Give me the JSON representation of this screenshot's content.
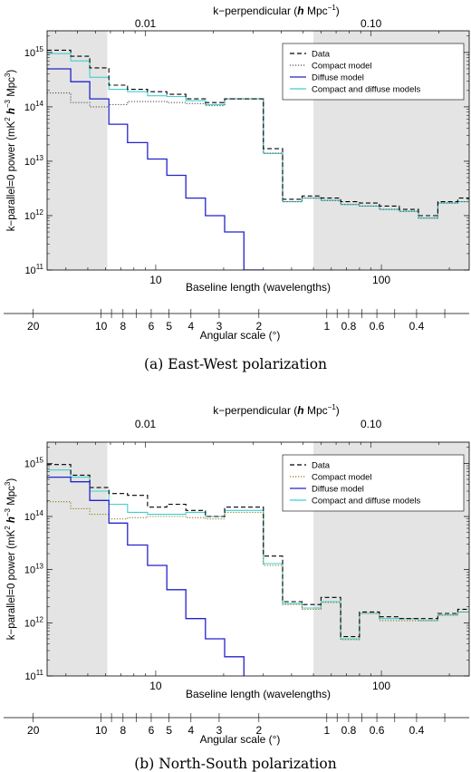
{
  "chart_data": [
    {
      "type": "line",
      "panel_caption": "(a) East-West polarization",
      "xlabel": "Baseline length (wavelengths)",
      "ylabel_parts": [
        "k−parallel=0 power (mK",
        "2",
        " ",
        "h",
        "−3",
        " Mpc",
        "3",
        ")"
      ],
      "top_axis_label_parts": [
        "k−perpendicular (",
        "h",
        " Mpc",
        "−1",
        ")"
      ],
      "angle_axis_label": "Angular scale (°)",
      "xscale": "log",
      "yscale": "log",
      "xlim": [
        3.3,
        245
      ],
      "ylim": [
        100000000000.0,
        2500000000000000.0
      ],
      "shaded_x_ranges": [
        [
          3.3,
          6.1
        ],
        [
          50,
          245
        ]
      ],
      "x_ticks": [
        {
          "value": 10,
          "label": "10"
        },
        {
          "value": 100,
          "label": "100"
        }
      ],
      "y_ticks": [
        {
          "value": 100000000000.0,
          "base": "10",
          "exp": "11"
        },
        {
          "value": 1000000000000.0,
          "base": "10",
          "exp": "12"
        },
        {
          "value": 10000000000000.0,
          "base": "10",
          "exp": "13"
        },
        {
          "value": 100000000000000.0,
          "base": "10",
          "exp": "14"
        },
        {
          "value": 1000000000000000.0,
          "base": "10",
          "exp": "15"
        }
      ],
      "k_ticks": [
        {
          "value": 0.01,
          "label": "0.01"
        },
        {
          "value": 0.1,
          "label": "0.10"
        }
      ],
      "angle_ticks": [
        "20",
        "10",
        "8",
        "6",
        "5",
        "4",
        "3",
        "2",
        "1",
        "0.8",
        "0.6",
        "0.4"
      ],
      "legend_position": "top-right",
      "bin_edges": [
        3.3,
        4.2,
        5.1,
        6.2,
        7.5,
        9.2,
        11.2,
        13.6,
        16.6,
        20.2,
        24.6,
        30,
        36.5,
        44.5,
        54,
        66,
        80,
        98,
        120,
        146,
        178,
        218,
        245
      ],
      "series": [
        {
          "name": "Data",
          "color": "#000000",
          "style": "dashed",
          "values": [
            1100000000000000.0,
            850000000000000.0,
            520000000000000.0,
            250000000000000.0,
            210000000000000.0,
            190000000000000.0,
            170000000000000.0,
            140000000000000.0,
            120000000000000.0,
            140000000000000.0,
            140000000000000.0,
            17000000000000.0,
            2000000000000.0,
            2300000000000.0,
            2100000000000.0,
            1800000000000.0,
            1700000000000.0,
            1500000000000.0,
            1300000000000.0,
            1000000000000.0,
            1800000000000.0,
            2100000000000.0
          ]
        },
        {
          "name": "Compact model",
          "color": "#555555",
          "style": "dotted",
          "values": [
            180000000000000.0,
            120000000000000.0,
            100000000000000.0,
            110000000000000.0,
            125000000000000.0,
            125000000000000.0,
            120000000000000.0,
            115000000000000.0,
            105000000000000.0,
            140000000000000.0,
            140000000000000.0,
            14000000000000.0,
            1800000000000.0,
            2100000000000.0,
            1900000000000.0,
            1600000000000.0,
            1500000000000.0,
            1300000000000.0,
            1200000000000.0,
            900000000000.0,
            1700000000000.0,
            1800000000000.0
          ]
        },
        {
          "name": "Diffuse model",
          "color": "#2323cc",
          "style": "solid",
          "values": [
            500000000000000.0,
            290000000000000.0,
            140000000000000.0,
            48000000000000.0,
            22000000000000.0,
            11000000000000.0,
            5500000000000.0,
            2100000000000.0,
            1000000000000.0,
            500000000000.0,
            100000000000.0
          ]
        },
        {
          "name": "Compact and diffuse models",
          "color": "#3fcfcf",
          "style": "solid",
          "values": [
            950000000000000.0,
            700000000000000.0,
            350000000000000.0,
            210000000000000.0,
            190000000000000.0,
            160000000000000.0,
            155000000000000.0,
            130000000000000.0,
            110000000000000.0,
            140000000000000.0,
            140000000000000.0,
            14000000000000.0,
            1800000000000.0,
            2100000000000.0,
            1900000000000.0,
            1600000000000.0,
            1500000000000.0,
            1300000000000.0,
            1200000000000.0,
            900000000000.0,
            1700000000000.0,
            1800000000000.0
          ]
        }
      ]
    },
    {
      "type": "line",
      "panel_caption": "(b) North-South polarization",
      "xlabel": "Baseline length (wavelengths)",
      "ylabel_parts": [
        "k−parallel=0 power (mK",
        "2",
        " ",
        "h",
        "−3",
        " Mpc",
        "3",
        ")"
      ],
      "top_axis_label_parts": [
        "k−perpendicular (",
        "h",
        " Mpc",
        "−1",
        ")"
      ],
      "angle_axis_label": "Angular scale (°)",
      "xscale": "log",
      "yscale": "log",
      "xlim": [
        3.3,
        245
      ],
      "ylim": [
        100000000000.0,
        2500000000000000.0
      ],
      "shaded_x_ranges": [
        [
          3.3,
          6.1
        ],
        [
          50,
          245
        ]
      ],
      "x_ticks": [
        {
          "value": 10,
          "label": "10"
        },
        {
          "value": 100,
          "label": "100"
        }
      ],
      "y_ticks": [
        {
          "value": 100000000000.0,
          "base": "10",
          "exp": "11"
        },
        {
          "value": 1000000000000.0,
          "base": "10",
          "exp": "12"
        },
        {
          "value": 10000000000000.0,
          "base": "10",
          "exp": "13"
        },
        {
          "value": 100000000000000.0,
          "base": "10",
          "exp": "14"
        },
        {
          "value": 1000000000000000.0,
          "base": "10",
          "exp": "15"
        }
      ],
      "k_ticks": [
        {
          "value": 0.01,
          "label": "0.01"
        },
        {
          "value": 0.1,
          "label": "0.10"
        }
      ],
      "angle_ticks": [
        "20",
        "10",
        "8",
        "6",
        "5",
        "4",
        "3",
        "2",
        "1",
        "0.8",
        "0.6",
        "0.4"
      ],
      "legend_position": "top-right",
      "bin_edges": [
        3.3,
        4.2,
        5.1,
        6.2,
        7.5,
        9.2,
        11.2,
        13.6,
        16.6,
        20.2,
        24.6,
        30,
        36.5,
        44.5,
        54,
        66,
        80,
        98,
        120,
        146,
        178,
        218,
        245
      ],
      "series": [
        {
          "name": "Data",
          "color": "#000000",
          "style": "dashed",
          "values": [
            950000000000000.0,
            600000000000000.0,
            350000000000000.0,
            270000000000000.0,
            250000000000000.0,
            150000000000000.0,
            170000000000000.0,
            130000000000000.0,
            100000000000000.0,
            150000000000000.0,
            150000000000000.0,
            18000000000000.0,
            2500000000000.0,
            2200000000000.0,
            3000000000000.0,
            550000000000.0,
            1600000000000.0,
            1300000000000.0,
            1200000000000.0,
            1200000000000.0,
            1500000000000.0,
            1800000000000.0
          ]
        },
        {
          "name": "Compact model",
          "color": "#8a7a20",
          "style": "dotted",
          "values": [
            190000000000000.0,
            140000000000000.0,
            110000000000000.0,
            90000000000000.0,
            95000000000000.0,
            100000000000000.0,
            100000000000000.0,
            95000000000000.0,
            90000000000000.0,
            120000000000000.0,
            120000000000000.0,
            12000000000000.0,
            2200000000000.0,
            1800000000000.0,
            2400000000000.0,
            480000000000.0,
            1500000000000.0,
            1100000000000.0,
            1100000000000.0,
            1100000000000.0,
            1400000000000.0,
            1600000000000.0
          ]
        },
        {
          "name": "Diffuse model",
          "color": "#2323cc",
          "style": "solid",
          "values": [
            550000000000000.0,
            450000000000000.0,
            200000000000000.0,
            75000000000000.0,
            29000000000000.0,
            12000000000000.0,
            4200000000000.0,
            1200000000000.0,
            500000000000.0,
            230000000000.0,
            50000000000.0
          ]
        },
        {
          "name": "Compact and diffuse models",
          "color": "#3fcfcf",
          "style": "solid",
          "values": [
            750000000000000.0,
            550000000000000.0,
            300000000000000.0,
            170000000000000.0,
            120000000000000.0,
            110000000000000.0,
            110000000000000.0,
            120000000000000.0,
            100000000000000.0,
            130000000000000.0,
            130000000000000.0,
            13000000000000.0,
            2300000000000.0,
            1900000000000.0,
            2500000000000.0,
            500000000000.0,
            1500000000000.0,
            1200000000000.0,
            1200000000000.0,
            1100000000000.0,
            1400000000000.0,
            1600000000000.0
          ]
        }
      ]
    }
  ]
}
